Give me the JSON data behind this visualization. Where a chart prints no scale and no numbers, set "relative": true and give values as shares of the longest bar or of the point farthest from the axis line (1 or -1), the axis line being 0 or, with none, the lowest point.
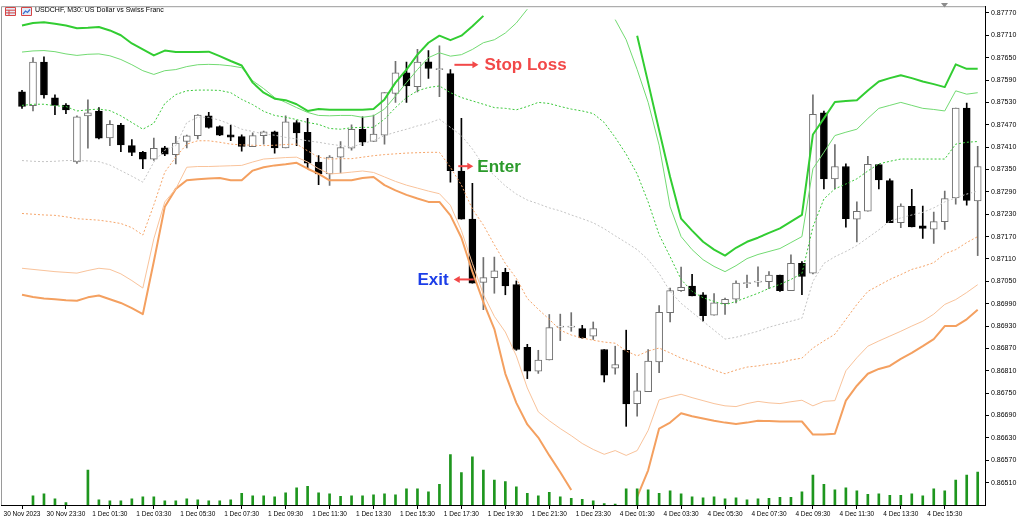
{
  "chart_data": [
    {
      "type": "candlestick",
      "title": "USDCHF, M30: US Dollar vs Swiss Franc",
      "categories": [
        "30 Nov 2023",
        null,
        null,
        null,
        "30 Nov 23:30",
        null,
        null,
        null,
        "1 Dec 01:30",
        null,
        null,
        null,
        "1 Dec 03:30",
        null,
        null,
        null,
        "1 Dec 05:30",
        null,
        null,
        null,
        "1 Dec 07:30",
        null,
        null,
        null,
        "1 Dec 09:30",
        null,
        null,
        null,
        "1 Dec 11:30",
        null,
        null,
        null,
        "1 Dec 13:30",
        null,
        null,
        null,
        "1 Dec 15:30",
        null,
        null,
        null,
        "1 Dec 17:30",
        null,
        null,
        null,
        "1 Dec 19:30",
        null,
        null,
        null,
        "1 Dec 21:30",
        null,
        null,
        null,
        "1 Dec 23:30",
        null,
        null,
        null,
        "4 Dec 01:30",
        null,
        null,
        null,
        "4 Dec 03:30",
        null,
        null,
        null,
        "4 Dec 05:30",
        null,
        null,
        null,
        "4 Dec 07:30",
        null,
        null,
        null,
        "4 Dec 09:30",
        null,
        null,
        null,
        "4 Dec 11:30",
        null,
        null,
        null,
        "4 Dec 13:30",
        null,
        null,
        null,
        "4 Dec 15:30",
        null,
        null,
        null
      ],
      "ohlc": [
        [
          0.87558,
          0.87562,
          0.87514,
          0.87519
        ],
        [
          0.87521,
          0.8765,
          0.87507,
          0.87638
        ],
        [
          0.87638,
          0.87652,
          0.87541,
          0.8755
        ],
        [
          0.87542,
          0.8755,
          0.87497,
          0.87522
        ],
        [
          0.87523,
          0.87527,
          0.875,
          0.8751
        ],
        [
          0.8737,
          0.87494,
          0.87366,
          0.87491
        ],
        [
          0.87494,
          0.87537,
          0.87407,
          0.87502
        ],
        [
          0.87507,
          0.87516,
          0.87432,
          0.87434
        ],
        [
          0.87435,
          0.87481,
          0.87414,
          0.87471
        ],
        [
          0.87469,
          0.87474,
          0.87398,
          0.87416
        ],
        [
          0.87414,
          0.8743,
          0.87387,
          0.87396
        ],
        [
          0.87396,
          0.87399,
          0.87352,
          0.87378
        ],
        [
          0.87378,
          0.87434,
          0.87374,
          0.87407
        ],
        [
          0.87408,
          0.87412,
          0.87387,
          0.87391
        ],
        [
          0.8739,
          0.87439,
          0.87365,
          0.87421
        ],
        [
          0.87425,
          0.87442,
          0.87408,
          0.8744
        ],
        [
          0.87441,
          0.87497,
          0.87432,
          0.87496
        ],
        [
          0.87494,
          0.87503,
          0.87461,
          0.87463
        ],
        [
          0.87465,
          0.87467,
          0.87441,
          0.87442
        ],
        [
          0.87443,
          0.87469,
          0.87427,
          0.87437
        ],
        [
          0.87438,
          0.87443,
          0.87399,
          0.87412
        ],
        [
          0.87411,
          0.87448,
          0.87411,
          0.87441
        ],
        [
          0.87441,
          0.87453,
          0.87418,
          0.87451
        ],
        [
          0.87451,
          0.87453,
          0.87394,
          0.87408
        ],
        [
          0.87408,
          0.87494,
          0.87408,
          0.87478
        ],
        [
          0.87476,
          0.87481,
          0.87414,
          0.87448
        ],
        [
          0.8745,
          0.87487,
          0.87352,
          0.87367
        ],
        [
          0.8737,
          0.87387,
          0.87309,
          0.87338
        ],
        [
          0.87338,
          0.87387,
          0.87307,
          0.87383
        ],
        [
          0.87383,
          0.87425,
          0.87341,
          0.87409
        ],
        [
          0.87407,
          0.8747,
          0.87402,
          0.87458
        ],
        [
          0.87458,
          0.87491,
          0.87414,
          0.87423
        ],
        [
          0.87425,
          0.87496,
          0.87425,
          0.87445
        ],
        [
          0.87442,
          0.87556,
          0.87418,
          0.87556
        ],
        [
          0.87554,
          0.8764,
          0.8753,
          0.87609
        ],
        [
          0.87609,
          0.87638,
          0.8753,
          0.87574
        ],
        [
          0.87572,
          0.87672,
          0.87558,
          0.87638
        ],
        [
          0.87639,
          0.87669,
          0.87594,
          0.87621
        ],
        [
          0.87618,
          0.87682,
          0.87545,
          0.87618
        ],
        [
          0.87607,
          0.87618,
          0.87316,
          0.87347
        ],
        [
          0.87346,
          0.87487,
          0.87217,
          0.87217
        ],
        [
          0.87217,
          0.87313,
          0.87045,
          0.87045
        ],
        [
          0.87047,
          0.87114,
          0.86974,
          0.8706
        ],
        [
          0.8706,
          0.87115,
          0.87018,
          0.87078
        ],
        [
          0.87074,
          0.87085,
          0.87014,
          0.87038
        ],
        [
          0.87041,
          0.87051,
          0.86865,
          0.86867
        ],
        [
          0.86873,
          0.86881,
          0.86789,
          0.86809
        ],
        [
          0.86809,
          0.86865,
          0.86803,
          0.86839
        ],
        [
          0.86839,
          0.86961,
          0.86839,
          0.86926
        ],
        [
          0.86927,
          0.86962,
          0.86891,
          0.86927
        ],
        [
          0.86927,
          0.86966,
          0.86916,
          0.86927
        ],
        [
          0.86923,
          0.86932,
          0.86897,
          0.86898
        ],
        [
          0.86903,
          0.86941,
          0.86894,
          0.86923
        ],
        [
          0.86867,
          0.86867,
          0.8678,
          0.86798
        ],
        [
          0.86817,
          0.86876,
          0.86801,
          0.86827
        ],
        [
          0.86865,
          0.86919,
          0.86661,
          0.86721
        ],
        [
          0.86722,
          0.86803,
          0.86688,
          0.86756
        ],
        [
          0.86754,
          0.86867,
          0.86754,
          0.86836
        ],
        [
          0.86834,
          0.86985,
          0.86805,
          0.86967
        ],
        [
          0.86966,
          0.87032,
          0.86941,
          0.87025
        ],
        [
          0.87025,
          0.87088,
          0.87023,
          0.87034
        ],
        [
          0.87037,
          0.87069,
          0.87011,
          0.87011
        ],
        [
          0.87014,
          0.8702,
          0.86943,
          0.86958
        ],
        [
          0.86959,
          0.87017,
          0.86959,
          0.86992
        ],
        [
          0.8699,
          0.87005,
          0.86961,
          0.87002
        ],
        [
          0.87002,
          0.87051,
          0.86992,
          0.87045
        ],
        [
          0.87044,
          0.87067,
          0.87033,
          0.87044
        ],
        [
          0.87048,
          0.87089,
          0.87036,
          0.87048
        ],
        [
          0.87049,
          0.87076,
          0.8703,
          0.87067
        ],
        [
          0.87067,
          0.87067,
          0.87023,
          0.87025
        ],
        [
          0.87025,
          0.87121,
          0.87025,
          0.87098
        ],
        [
          0.87098,
          0.87103,
          0.87014,
          0.87063
        ],
        [
          0.87072,
          0.8755,
          0.8707,
          0.87498
        ],
        [
          0.87502,
          0.87507,
          0.87298,
          0.87325
        ],
        [
          0.87325,
          0.87417,
          0.87298,
          0.87358
        ],
        [
          0.87358,
          0.87365,
          0.87195,
          0.87218
        ],
        [
          0.87217,
          0.87263,
          0.87156,
          0.87238
        ],
        [
          0.87238,
          0.87385,
          0.87238,
          0.87364
        ],
        [
          0.87363,
          0.87363,
          0.87298,
          0.87322
        ],
        [
          0.8732,
          0.87325,
          0.87207,
          0.87207
        ],
        [
          0.87207,
          0.87258,
          0.87194,
          0.87252
        ],
        [
          0.87251,
          0.87297,
          0.87196,
          0.87196
        ],
        [
          0.87199,
          0.87252,
          0.87165,
          0.87192
        ],
        [
          0.8719,
          0.87236,
          0.87152,
          0.8721
        ],
        [
          0.8721,
          0.87292,
          0.87189,
          0.87272
        ],
        [
          0.87274,
          0.87515,
          0.87257,
          0.87515
        ],
        [
          0.87515,
          0.87528,
          0.87254,
          0.87267
        ],
        [
          0.87266,
          0.87412,
          0.87119,
          0.87358
        ]
      ],
      "series": [
        {
          "type": "line",
          "color": "#32cd32",
          "line_style": "solid",
          "values": [
            0.87736,
            0.87743,
            0.87745,
            0.87741,
            0.87736,
            0.87729,
            0.8773,
            0.87732,
            0.87723,
            0.8771,
            0.87688,
            0.87672,
            0.87656,
            0.87669,
            0.87665,
            0.87665,
            0.87665,
            0.87666,
            0.87654,
            0.87641,
            0.87629,
            0.87583,
            0.87556,
            0.8754,
            0.87536,
            0.87525,
            0.87507,
            0.87512,
            0.8751,
            0.8751,
            0.8751,
            0.8751,
            0.87512,
            0.87538,
            0.87583,
            0.87618,
            0.87658,
            0.8769,
            0.87709,
            0.87697,
            0.87709,
            0.87734,
            0.87762,
            null,
            null,
            null,
            null,
            null,
            null,
            null,
            null,
            null,
            null,
            null,
            null,
            null,
            0.87709,
            0.87583,
            0.87455,
            0.8733,
            0.87218,
            0.87186,
            0.87156,
            0.87135,
            0.87119,
            0.8714,
            0.87156,
            0.87167,
            0.8718,
            0.87192,
            0.8721,
            0.87228,
            0.87444,
            0.87487,
            0.87531,
            0.87534,
            0.87536,
            0.87562,
            0.87586,
            0.87595,
            0.87603,
            0.87595,
            0.87586,
            0.87579,
            0.87571,
            0.87632,
            0.8762,
            0.8762
          ]
        },
        {
          "type": "line",
          "color": "#72da72",
          "line_style": "solid",
          "values": [
            0.87665,
            0.87668,
            0.87669,
            0.87666,
            0.8766,
            0.87656,
            0.87659,
            0.8766,
            0.87655,
            0.87645,
            0.87631,
            0.87615,
            0.87605,
            0.87615,
            0.87618,
            0.87626,
            0.87631,
            0.87632,
            0.87631,
            0.87628,
            0.87623,
            0.87588,
            0.87567,
            0.87543,
            0.8753,
            0.87516,
            0.87503,
            0.87495,
            0.87494,
            0.87495,
            0.87495,
            0.8749,
            0.87494,
            0.87512,
            0.87547,
            0.87583,
            0.87618,
            0.8765,
            0.87663,
            0.87654,
            0.87658,
            0.87672,
            0.8769,
            0.87698,
            0.87716,
            0.87743,
            0.8778,
            null,
            null,
            null,
            null,
            null,
            null,
            null,
            0.87752,
            0.87698,
            0.87618,
            0.8753,
            0.87415,
            0.8725,
            0.8717,
            0.87135,
            0.87108,
            0.8709,
            0.87076,
            0.87092,
            0.87111,
            0.87122,
            0.8713,
            0.87138,
            0.87154,
            0.8717,
            0.87352,
            0.87396,
            0.87441,
            0.8745,
            0.87458,
            0.87487,
            0.87514,
            0.87522,
            0.8753,
            0.87522,
            0.87514,
            0.87511,
            0.87507,
            0.87561,
            0.87552,
            0.87556
          ]
        },
        {
          "type": "line",
          "color": "#3cc83c",
          "line_style": "dotted",
          "values": [
            0.87522,
            0.87525,
            0.87525,
            0.87521,
            0.87519,
            0.87507,
            0.8751,
            0.87512,
            0.87508,
            0.87494,
            0.87476,
            0.87458,
            0.87474,
            0.87527,
            0.87551,
            0.87561,
            0.87563,
            0.87563,
            0.87562,
            0.87556,
            0.87538,
            0.87524,
            0.87506,
            0.87495,
            0.8749,
            0.87484,
            0.87476,
            0.87471,
            0.8746,
            0.87458,
            0.87462,
            0.87463,
            0.87463,
            0.87485,
            0.87516,
            0.87543,
            0.87561,
            0.8757,
            0.87574,
            0.87556,
            0.87543,
            0.87534,
            0.87525,
            0.87516,
            0.87514,
            0.8751,
            0.87519,
            0.8753,
            0.87527,
            0.87519,
            0.87512,
            0.87507,
            0.875,
            0.87476,
            0.87436,
            0.87391,
            0.87338,
            0.87263,
            0.87175,
            0.87116,
            0.87055,
            0.87023,
            0.87006,
            0.86996,
            0.86987,
            0.86996,
            0.87007,
            0.87018,
            0.87031,
            0.87042,
            0.87055,
            0.87071,
            0.87196,
            0.87271,
            0.87298,
            0.87311,
            0.87325,
            0.87346,
            0.87365,
            0.87372,
            0.87378,
            0.87378,
            0.87378,
            0.87378,
            0.87378,
            0.87418,
            0.87423,
            0.87425
          ]
        },
        {
          "type": "line",
          "color": "#c4c4c4",
          "line_style": "dotted",
          "values": [
            0.87374,
            0.87372,
            0.87371,
            0.87372,
            0.87374,
            0.87374,
            0.87373,
            0.87371,
            0.87362,
            0.87347,
            0.87332,
            0.87316,
            0.8737,
            0.87402,
            0.87414,
            0.87476,
            0.8749,
            0.8749,
            0.87482,
            0.87471,
            0.87458,
            0.87452,
            0.87445,
            0.87442,
            0.87436,
            0.87432,
            0.87427,
            0.87423,
            0.87418,
            0.87414,
            0.8741,
            0.8742,
            0.87427,
            0.87441,
            0.8745,
            0.87458,
            0.87467,
            0.87474,
            0.87485,
            0.87463,
            0.87441,
            0.87405,
            0.87361,
            0.87334,
            0.87306,
            0.87284,
            0.87268,
            0.87258,
            0.87247,
            0.87239,
            0.87228,
            0.87218,
            0.87207,
            0.87191,
            0.87172,
            0.87154,
            0.87135,
            0.87108,
            0.87071,
            0.87023,
            0.86991,
            0.86967,
            0.86943,
            0.86919,
            0.86895,
            0.869,
            0.86908,
            0.86916,
            0.86927,
            0.86935,
            0.86943,
            0.86951,
            0.8705,
            0.87098,
            0.87116,
            0.8713,
            0.87146,
            0.87167,
            0.87188,
            0.87212,
            0.8722,
            0.87228,
            0.87235,
            0.87247,
            0.87263,
            0.87274,
            0.87284,
            0.87292
          ]
        },
        {
          "type": "line",
          "color": "#f5a56a",
          "line_style": "dotted",
          "values": [
            0.87232,
            0.8723,
            0.87228,
            0.87227,
            0.87223,
            0.87218,
            0.87216,
            0.87214,
            0.8721,
            0.87205,
            0.87194,
            0.87174,
            0.87255,
            0.87343,
            0.87383,
            0.87418,
            0.87427,
            0.87427,
            0.87423,
            0.87418,
            0.87416,
            0.87415,
            0.87414,
            0.87415,
            0.87417,
            0.87418,
            0.874,
            0.87383,
            0.87378,
            0.87379,
            0.87379,
            0.87383,
            0.87387,
            0.8739,
            0.87392,
            0.87394,
            0.87395,
            0.87396,
            0.87396,
            0.87356,
            0.87308,
            0.87244,
            0.87201,
            0.87148,
            0.87098,
            0.87058,
            0.87004,
            0.86975,
            0.86948,
            0.86919,
            0.86906,
            0.86898,
            0.86892,
            0.86887,
            0.86884,
            0.86863,
            0.8685,
            0.86863,
            0.86871,
            0.86858,
            0.86844,
            0.86834,
            0.86823,
            0.86812,
            0.86802,
            0.86812,
            0.8682,
            0.86823,
            0.86828,
            0.86831,
            0.86839,
            0.86844,
            0.86871,
            0.8689,
            0.86908,
            0.86948,
            0.86988,
            0.87023,
            0.87039,
            0.87055,
            0.87068,
            0.87082,
            0.8709,
            0.871,
            0.87124,
            0.87135,
            0.87154,
            0.8717
          ]
        },
        {
          "type": "line",
          "color": "#f9c39b",
          "line_style": "solid",
          "values": [
            0.87085,
            0.87082,
            0.87079,
            0.87076,
            0.87074,
            0.87072,
            0.87079,
            0.87085,
            0.87082,
            0.8707,
            0.87052,
            0.87032,
            0.87164,
            0.87263,
            0.87298,
            0.87356,
            0.87358,
            0.87358,
            0.87359,
            0.8736,
            0.87361,
            0.8737,
            0.87378,
            0.8738,
            0.87382,
            0.87383,
            0.8737,
            0.87352,
            0.87338,
            0.8734,
            0.87343,
            0.87346,
            0.87342,
            0.8733,
            0.87318,
            0.87308,
            0.873,
            0.87292,
            0.87285,
            0.87254,
            0.87186,
            0.87098,
            0.87015,
            0.86956,
            0.86914,
            0.8685,
            0.86764,
            0.867,
            0.86676,
            0.86655,
            0.86636,
            0.86615,
            0.86599,
            0.86586,
            0.86596,
            0.86583,
            0.86596,
            0.8665,
            0.86732,
            0.8674,
            0.86747,
            0.86738,
            0.8673,
            0.86722,
            0.86716,
            0.86714,
            0.86722,
            0.86728,
            0.86724,
            0.86722,
            0.86727,
            0.86731,
            0.86716,
            0.86728,
            0.8673,
            0.8681,
            0.86845,
            0.86876,
            0.8689,
            0.86903,
            0.86916,
            0.8693,
            0.86943,
            0.86962,
            0.86988,
            0.87001,
            0.8702,
            0.87041
          ]
        },
        {
          "type": "line",
          "color": "#f4a060",
          "line_style": "solid",
          "values": [
            0.87014,
            0.87008,
            0.87004,
            0.87002,
            0.86999,
            0.86998,
            0.87007,
            0.87012,
            0.87002,
            0.86992,
            0.86978,
            0.86962,
            0.87103,
            0.8725,
            0.87298,
            0.87321,
            0.87324,
            0.87326,
            0.87327,
            0.87321,
            0.87321,
            0.87347,
            0.87356,
            0.87361,
            0.87364,
            0.87368,
            0.87352,
            0.87338,
            0.87321,
            0.87321,
            0.87321,
            0.87327,
            0.8733,
            0.87308,
            0.87294,
            0.87282,
            0.87272,
            0.87263,
            0.87263,
            0.87227,
            0.87167,
            0.87076,
            0.86994,
            0.86922,
            0.86802,
            0.86724,
            0.86666,
            0.86631,
            0.86583,
            0.86538,
            0.8649,
            null,
            null,
            null,
            null,
            null,
            0.86472,
            0.86543,
            0.86655,
            0.86671,
            0.86696,
            0.86688,
            0.86682,
            0.86676,
            0.86671,
            0.86667,
            0.86671,
            0.86676,
            0.86675,
            0.86674,
            0.86674,
            0.86674,
            0.86639,
            0.86639,
            0.86641,
            0.8673,
            0.8677,
            0.86802,
            0.86815,
            0.86823,
            0.86842,
            0.86858,
            0.86876,
            0.86895,
            0.8693,
            0.8693,
            0.86948,
            0.86974
          ]
        }
      ],
      "ylim": [
        0.8645,
        0.87788
      ],
      "yticks": [
        {
          "value": 0.8651,
          "label": "0.86510"
        },
        {
          "value": 0.8657,
          "label": "0.86570"
        },
        {
          "value": 0.8663,
          "label": "0.86630"
        },
        {
          "value": 0.8669,
          "label": "0.86690"
        },
        {
          "value": 0.8675,
          "label": "0.86750"
        },
        {
          "value": 0.8681,
          "label": "0.86810"
        },
        {
          "value": 0.8687,
          "label": "0.86870"
        },
        {
          "value": 0.8693,
          "label": "0.86930"
        },
        {
          "value": 0.8699,
          "label": "0.86990"
        },
        {
          "value": 0.8705,
          "label": "0.87050"
        },
        {
          "value": 0.8711,
          "label": "0.87110"
        },
        {
          "value": 0.8717,
          "label": "0.87170"
        },
        {
          "value": 0.8723,
          "label": "0.87230"
        },
        {
          "value": 0.8729,
          "label": "0.87290"
        },
        {
          "value": 0.8735,
          "label": "0.87350"
        },
        {
          "value": 0.8741,
          "label": "0.87410"
        },
        {
          "value": 0.8747,
          "label": "0.87470"
        },
        {
          "value": 0.8753,
          "label": "0.87530"
        },
        {
          "value": 0.8759,
          "label": "0.87590"
        },
        {
          "value": 0.8765,
          "label": "0.87650"
        },
        {
          "value": 0.8771,
          "label": "0.87710"
        },
        {
          "value": 0.8777,
          "label": "0.87770"
        }
      ],
      "annotations": [
        "Stop Loss",
        "Enter",
        "Exit"
      ]
    },
    {
      "type": "bar",
      "relative": true,
      "color": "#1e961e",
      "categories": [
        null,
        null,
        null,
        null,
        null,
        null,
        null,
        null,
        null,
        null,
        null,
        null,
        null,
        null,
        null,
        null,
        null,
        null,
        null,
        null,
        null,
        null,
        null,
        null,
        null,
        null,
        null,
        null,
        null,
        null,
        null,
        null,
        null,
        null,
        null,
        null,
        null,
        null,
        null,
        null,
        null,
        null,
        null,
        null,
        null,
        null,
        null,
        null,
        null,
        null,
        null,
        null,
        null,
        null,
        null,
        null,
        null,
        null,
        null,
        null,
        null,
        null,
        null,
        null,
        null,
        null,
        null,
        null,
        null,
        null,
        null,
        null,
        null,
        null,
        null,
        null,
        null,
        null,
        null,
        null,
        null,
        null,
        null,
        null,
        null,
        null,
        null,
        null
      ],
      "values": [
        null,
        0.18,
        0.22,
        0.12,
        0.05,
        null,
        0.69,
        0.1,
        0.08,
        0.08,
        0.12,
        0.16,
        0.16,
        0.08,
        0.08,
        0.12,
        0.1,
        0.08,
        0.08,
        0.1,
        0.23,
        0.18,
        0.18,
        0.16,
        0.24,
        0.34,
        0.37,
        0.24,
        0.22,
        0.17,
        0.18,
        0.18,
        0.2,
        0.22,
        0.2,
        0.32,
        0.32,
        0.26,
        0.41,
        1,
        0.64,
        0.95,
        0.69,
        0.49,
        0.46,
        0.36,
        0.23,
        0.18,
        0.25,
        0.16,
        0.13,
        0.11,
        0.08,
        0.03,
        0.02,
        0.32,
        0.32,
        0.3,
        0.23,
        0.28,
        0.22,
        0.16,
        0.14,
        0.16,
        0.12,
        0.14,
        0.1,
        0.12,
        0.13,
        0.15,
        0.15,
        0.26,
        0.59,
        0.41,
        0.3,
        0.34,
        0.28,
        0.21,
        0.22,
        0.19,
        0.19,
        0.22,
        0.18,
        0.32,
        0.28,
        0.49,
        0.59,
        0.65
      ]
    }
  ]
}
